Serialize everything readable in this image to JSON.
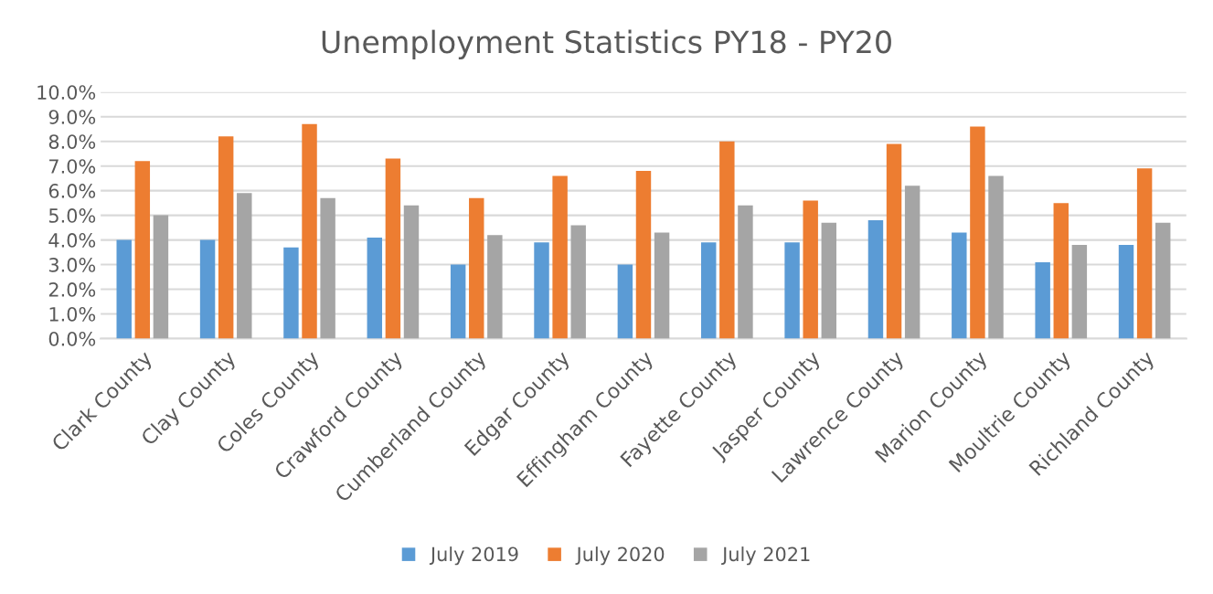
{
  "chart_data": {
    "type": "bar",
    "title": "Unemployment Statistics PY18 - PY20",
    "categories": [
      "Clark County",
      "Clay County",
      "Coles County",
      "Crawford County",
      "Cumberland County",
      "Edgar County",
      "Effingham County",
      "Fayette County",
      "Jasper County",
      "Lawrence County",
      "Marion County",
      "Moultrie County",
      "Richland County"
    ],
    "series": [
      {
        "name": "July 2019",
        "color": "#5b9bd5",
        "values": [
          4.0,
          4.0,
          3.7,
          4.1,
          3.0,
          3.9,
          3.0,
          3.9,
          3.9,
          4.8,
          4.3,
          3.1,
          3.8
        ]
      },
      {
        "name": "July 2020",
        "color": "#ed7d31",
        "values": [
          7.2,
          8.2,
          8.7,
          7.3,
          5.7,
          6.6,
          6.8,
          8.0,
          5.6,
          7.9,
          8.6,
          5.5,
          6.9
        ]
      },
      {
        "name": "July 2021",
        "color": "#a5a5a5",
        "values": [
          5.0,
          5.9,
          5.7,
          5.4,
          4.2,
          4.6,
          4.3,
          5.4,
          4.7,
          6.2,
          6.6,
          3.8,
          4.7
        ]
      }
    ],
    "ylim": [
      0,
      10
    ],
    "yticks": [
      {
        "value": 0,
        "label": "0.0%"
      },
      {
        "value": 1,
        "label": "1.0%"
      },
      {
        "value": 2,
        "label": "2.0%"
      },
      {
        "value": 3,
        "label": "3.0%"
      },
      {
        "value": 4,
        "label": "4.0%"
      },
      {
        "value": 5,
        "label": "5.0%"
      },
      {
        "value": 6,
        "label": "6.0%"
      },
      {
        "value": 7,
        "label": "7.0%"
      },
      {
        "value": 8,
        "label": "8.0%"
      },
      {
        "value": 9,
        "label": "9.0%"
      },
      {
        "value": 10,
        "label": "10.0%"
      }
    ],
    "grid": "y",
    "legend": "bottom"
  }
}
